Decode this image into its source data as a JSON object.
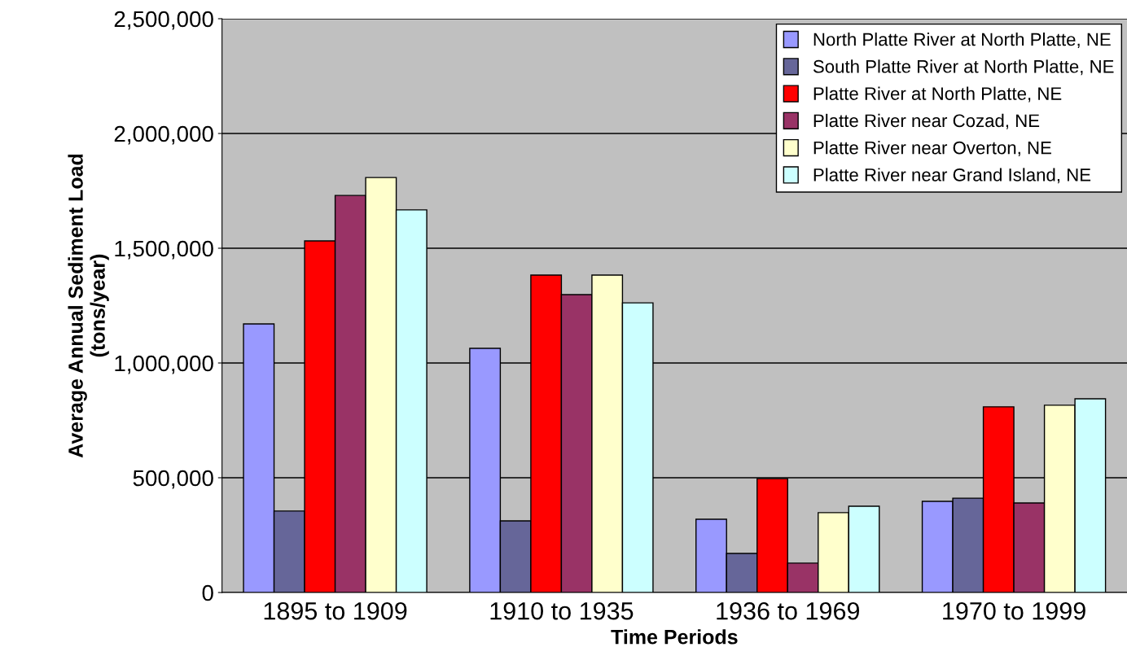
{
  "chart_data": {
    "type": "bar",
    "xlabel": "Time Periods",
    "ylabel": "Average Annual Sediment Load\n(tons/year)",
    "categories": [
      "1895 to 1909",
      "1910 to 1935",
      "1936 to 1969",
      "1970 to 1999"
    ],
    "series": [
      {
        "name": "North Platte River at North Platte, NE",
        "color": "#9999ff",
        "values": [
          1170000,
          1064000,
          319000,
          397000
        ]
      },
      {
        "name": "South Platte River at North Platte, NE",
        "color": "#666699",
        "values": [
          355000,
          312000,
          170000,
          411000
        ]
      },
      {
        "name": "Platte River at North Platte, NE",
        "color": "#ff0000",
        "values": [
          1532000,
          1383000,
          496000,
          809000
        ]
      },
      {
        "name": "Platte River near Cozad, NE",
        "color": "#993366",
        "values": [
          1730000,
          1298000,
          128000,
          390000
        ]
      },
      {
        "name": "Platte River near Overton, NE",
        "color": "#ffffcc",
        "values": [
          1808000,
          1383000,
          348000,
          816000
        ]
      },
      {
        "name": "Platte River near Grand Island, NE",
        "color": "#ccffff",
        "values": [
          1667000,
          1262000,
          376000,
          844000
        ]
      }
    ],
    "ylim": [
      0,
      2500000
    ],
    "yticks": [
      {
        "value": 0,
        "label": "0"
      },
      {
        "value": 500000,
        "label": "500,000"
      },
      {
        "value": 1000000,
        "label": "1,000,000"
      },
      {
        "value": 1500000,
        "label": "1,500,000"
      },
      {
        "value": 2000000,
        "label": "2,000,000"
      },
      {
        "value": 2500000,
        "label": "2,500,000"
      }
    ],
    "grid": "y",
    "legend": "top right"
  }
}
